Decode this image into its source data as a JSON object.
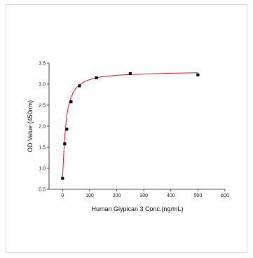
{
  "chart_data": {
    "type": "scatter",
    "title": "",
    "xlabel": "Human Glypican 3 Conc.(ng/mL)",
    "ylabel": "OD Value (450nm)",
    "xlim": [
      -50,
      600
    ],
    "ylim": [
      0.5,
      3.5
    ],
    "xticks": [
      "0",
      "100",
      "200",
      "300",
      "400",
      "500",
      "600"
    ],
    "yticks": [
      "0.5",
      "1.0",
      "1.5",
      "2.0",
      "2.5",
      "3.0",
      "3.5"
    ],
    "grid": false,
    "legend": "none",
    "series": [
      {
        "type": "scatter",
        "x": [
          0,
          7.8,
          15.6,
          31.25,
          62.5,
          125,
          250,
          500
        ],
        "y": [
          0.76,
          1.58,
          1.93,
          2.58,
          2.96,
          3.15,
          3.25,
          3.22
        ],
        "color": "#111111",
        "marker": "square"
      },
      {
        "type": "line",
        "x": [
          0,
          2,
          5,
          8,
          12,
          16,
          20,
          25,
          30,
          40,
          50,
          62.5,
          75,
          100,
          125,
          150,
          200,
          250,
          300,
          400,
          500
        ],
        "y": [
          0.76,
          1.06,
          1.44,
          1.74,
          2.04,
          2.26,
          2.42,
          2.56,
          2.67,
          2.81,
          2.91,
          2.98,
          3.04,
          3.11,
          3.15,
          3.18,
          3.21,
          3.23,
          3.24,
          3.26,
          3.27
        ],
        "color": "#e02020"
      }
    ]
  }
}
